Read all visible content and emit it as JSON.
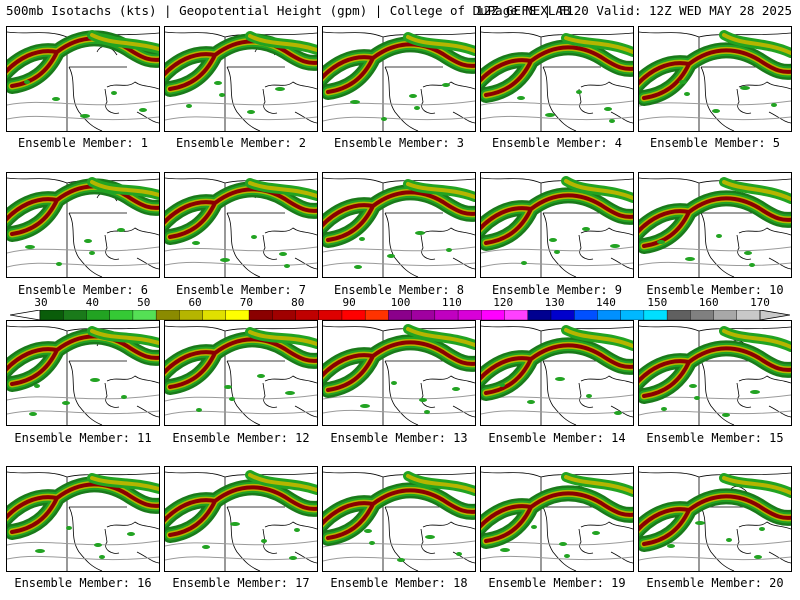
{
  "header": {
    "left_title": "500mb Isotachs (kts) | Geopotential Height (gpm) | College of DuPage NEXLAB",
    "right_title": "12Z GEFS | F120 Valid: 12Z WED MAY 28 2025"
  },
  "colorbar": {
    "tick_labels": [
      "30",
      "40",
      "50",
      "60",
      "70",
      "80",
      "90",
      "100",
      "110",
      "120",
      "130",
      "140",
      "150",
      "160",
      "170"
    ],
    "colors": [
      "#0a5d0a",
      "#1a7a1a",
      "#22a322",
      "#35c935",
      "#55e055",
      "#8b8b00",
      "#b5b500",
      "#e0e000",
      "#ffff00",
      "#8b0000",
      "#a00000",
      "#c00000",
      "#dd0000",
      "#ff0000",
      "#ff3300",
      "#8b008b",
      "#a000a0",
      "#c000c0",
      "#d800d8",
      "#ff00ff",
      "#ff40ff",
      "#000090",
      "#0000cc",
      "#0050ff",
      "#0090ff",
      "#00b8ff",
      "#00dfff",
      "#606060",
      "#808080",
      "#a8a8a8",
      "#c8c8c8"
    ]
  },
  "panels": [
    {
      "caption": "Ensemble Member: 1"
    },
    {
      "caption": "Ensemble Member: 2"
    },
    {
      "caption": "Ensemble Member: 3"
    },
    {
      "caption": "Ensemble Member: 4"
    },
    {
      "caption": "Ensemble Member: 5"
    },
    {
      "caption": "Ensemble Member: 6"
    },
    {
      "caption": "Ensemble Member: 7"
    },
    {
      "caption": "Ensemble Member: 8"
    },
    {
      "caption": "Ensemble Member: 9"
    },
    {
      "caption": "Ensemble Member: 10"
    },
    {
      "caption": "Ensemble Member: 11"
    },
    {
      "caption": "Ensemble Member: 12"
    },
    {
      "caption": "Ensemble Member: 13"
    },
    {
      "caption": "Ensemble Member: 14"
    },
    {
      "caption": "Ensemble Member: 15"
    },
    {
      "caption": "Ensemble Member: 16"
    },
    {
      "caption": "Ensemble Member: 17"
    },
    {
      "caption": "Ensemble Member: 18"
    },
    {
      "caption": "Ensemble Member: 19"
    },
    {
      "caption": "Ensemble Member: 20"
    }
  ]
}
